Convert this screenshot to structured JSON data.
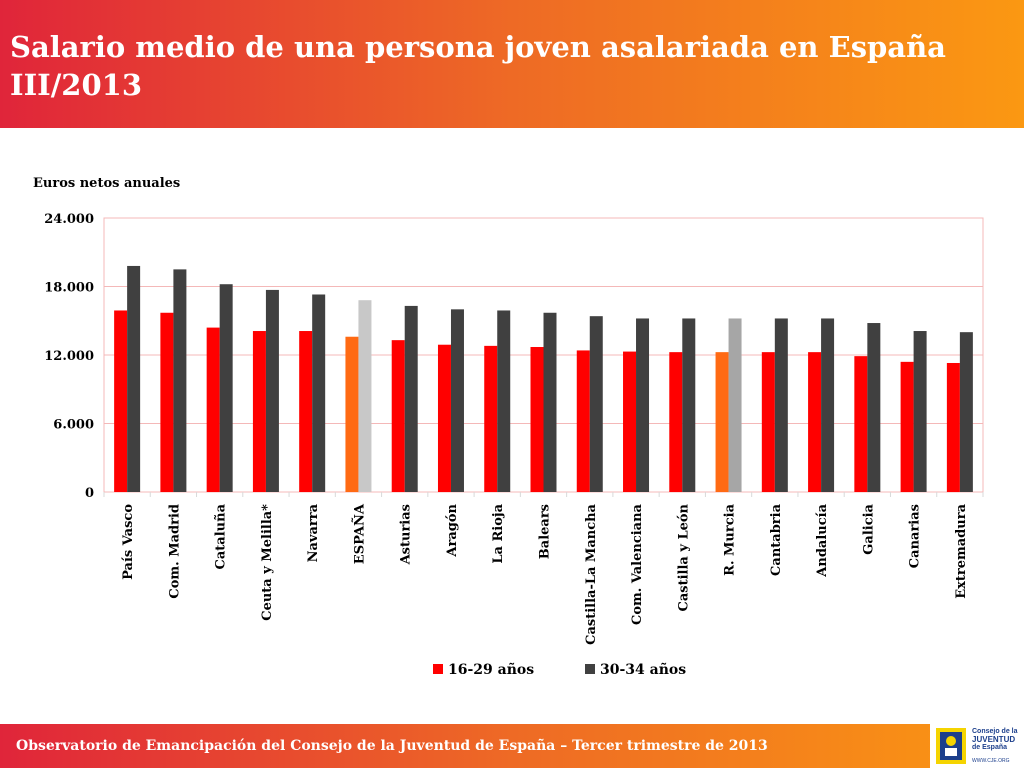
{
  "header": {
    "title_line1": "Salario medio de una persona joven asalariada en España",
    "title_line2": "III/2013"
  },
  "footer": {
    "text": "Observatorio de Emancipación del Consejo de la Juventud de España – Tercer trimestre de 2013",
    "logo_line1": "Consejo de la",
    "logo_line2": "JUVENTUD",
    "logo_line3": "de España",
    "logo_url": "WWW.CJE.ORG"
  },
  "colors": {
    "series1": "#ff0000",
    "series2": "#404040",
    "highlight1": "#ff6a13",
    "highlight2": "#c8c8c8",
    "murcia2": "#a6a6a6",
    "grid": "#f4b8b8"
  },
  "chart_data": {
    "type": "bar",
    "title": "Salario medio de una persona joven asalariada en España III/2013",
    "ylabel": "Euros netos anuales",
    "xlabel": "",
    "ylim": [
      0,
      24000
    ],
    "yticks": [
      0,
      6000,
      12000,
      18000,
      24000
    ],
    "ytick_labels": [
      "0",
      "6.000",
      "12.000",
      "18.000",
      "24.000"
    ],
    "grid": true,
    "legend": "bottom",
    "categories": [
      "País Vasco",
      "Com. Madrid",
      "Cataluña",
      "Ceuta y Melilla*",
      "Navarra",
      "ESPAÑA",
      "Asturias",
      "Aragón",
      "La Rioja",
      "Balears",
      "Castilla-La Mancha",
      "Com. Valenciana",
      "Castilla y León",
      "R. Murcia",
      "Cantabria",
      "Andalucía",
      "Galicia",
      "Canarias",
      "Extremadura"
    ],
    "series": [
      {
        "name": "16-29 años",
        "values": [
          15900,
          15700,
          14400,
          14100,
          14100,
          13600,
          13300,
          12900,
          12800,
          12700,
          12400,
          12300,
          12250,
          12250,
          12250,
          12250,
          11900,
          11400,
          11300
        ]
      },
      {
        "name": "30-34 años",
        "values": [
          19800,
          19500,
          18200,
          17700,
          17300,
          16800,
          16300,
          16000,
          15900,
          15700,
          15400,
          15200,
          15200,
          15200,
          15200,
          15200,
          14800,
          14100,
          14000
        ]
      }
    ],
    "highlighted_categories": [
      "ESPAÑA",
      "R. Murcia"
    ]
  }
}
